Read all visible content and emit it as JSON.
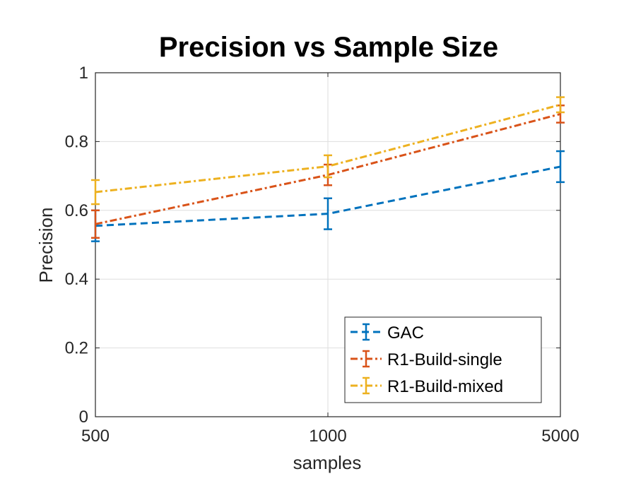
{
  "chart_data": {
    "type": "line",
    "title": "Precision vs Sample Size",
    "xlabel": "samples",
    "ylabel": "Precision",
    "categories": [
      "500",
      "1000",
      "5000"
    ],
    "ylim": [
      0,
      1
    ],
    "yticks": [
      0,
      0.2,
      0.4,
      0.6,
      0.8,
      1
    ],
    "ytick_labels": [
      "0",
      "0.2",
      "0.4",
      "0.6",
      "0.8",
      "1"
    ],
    "grid": true,
    "legend_position": "bottom-right",
    "series": [
      {
        "name": "GAC",
        "color": "#0072BD",
        "dash": "dashed",
        "values": [
          0.555,
          0.59,
          0.727
        ],
        "errors": [
          0.045,
          0.045,
          0.045
        ]
      },
      {
        "name": "R1-Build-single",
        "color": "#D95319",
        "dash": "dashdot",
        "values": [
          0.56,
          0.703,
          0.88
        ],
        "errors": [
          0.04,
          0.03,
          0.025
        ]
      },
      {
        "name": "R1-Build-mixed",
        "color": "#EDB120",
        "dash": "dashdot",
        "values": [
          0.653,
          0.728,
          0.907
        ],
        "errors": [
          0.035,
          0.032,
          0.022
        ]
      }
    ]
  }
}
